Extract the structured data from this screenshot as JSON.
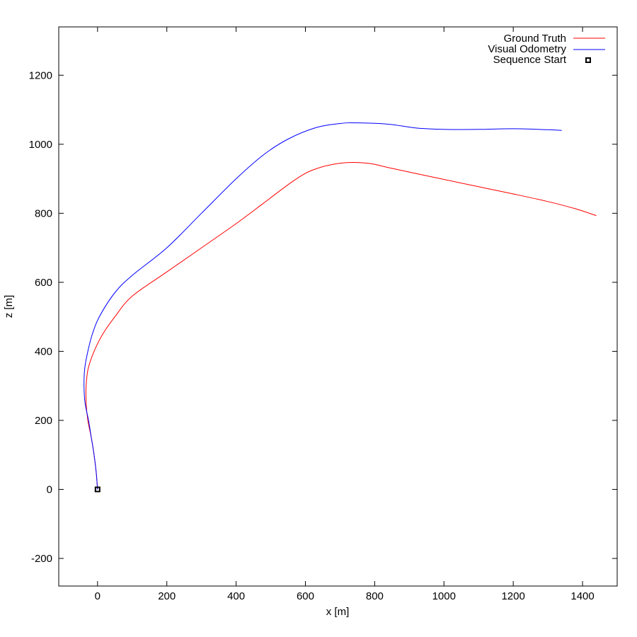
{
  "chart_data": {
    "type": "line",
    "xlabel": "x [m]",
    "ylabel": "z [m]",
    "xlim": [
      -112,
      1500
    ],
    "ylim": [
      -280,
      1340
    ],
    "xticks": [
      0,
      200,
      400,
      600,
      800,
      1000,
      1200,
      1400
    ],
    "yticks": [
      -200,
      0,
      200,
      400,
      600,
      800,
      1000,
      1200
    ],
    "grid": false,
    "legend_position": "top-right",
    "series": [
      {
        "name": "Ground Truth",
        "color": "#ff0000",
        "points": [
          [
            0,
            0
          ],
          [
            -4,
            50
          ],
          [
            -10,
            100
          ],
          [
            -18,
            150
          ],
          [
            -28,
            200
          ],
          [
            -33,
            250
          ],
          [
            -33,
            300
          ],
          [
            -27,
            350
          ],
          [
            -10,
            400
          ],
          [
            15,
            450
          ],
          [
            50,
            500
          ],
          [
            100,
            560
          ],
          [
            200,
            630
          ],
          [
            300,
            700
          ],
          [
            400,
            770
          ],
          [
            480,
            830
          ],
          [
            560,
            890
          ],
          [
            620,
            925
          ],
          [
            700,
            945
          ],
          [
            780,
            945
          ],
          [
            850,
            930
          ],
          [
            1000,
            898
          ],
          [
            1100,
            877
          ],
          [
            1200,
            856
          ],
          [
            1300,
            834
          ],
          [
            1380,
            813
          ],
          [
            1440,
            793
          ]
        ]
      },
      {
        "name": "Visual Odometry",
        "color": "#0000ff",
        "points": [
          [
            0,
            0
          ],
          [
            -4,
            50
          ],
          [
            -10,
            100
          ],
          [
            -18,
            150
          ],
          [
            -26,
            200
          ],
          [
            -36,
            250
          ],
          [
            -39,
            300
          ],
          [
            -37,
            350
          ],
          [
            -28,
            400
          ],
          [
            -15,
            450
          ],
          [
            5,
            500
          ],
          [
            50,
            570
          ],
          [
            100,
            620
          ],
          [
            200,
            700
          ],
          [
            300,
            800
          ],
          [
            400,
            900
          ],
          [
            480,
            970
          ],
          [
            550,
            1015
          ],
          [
            630,
            1048
          ],
          [
            700,
            1060
          ],
          [
            750,
            1062
          ],
          [
            840,
            1058
          ],
          [
            920,
            1047
          ],
          [
            1000,
            1043
          ],
          [
            1100,
            1043
          ],
          [
            1200,
            1045
          ],
          [
            1300,
            1042
          ],
          [
            1340,
            1040
          ]
        ]
      }
    ],
    "markers": [
      {
        "name": "Sequence Start",
        "x": 0,
        "y": 0,
        "shape": "square"
      }
    ]
  }
}
